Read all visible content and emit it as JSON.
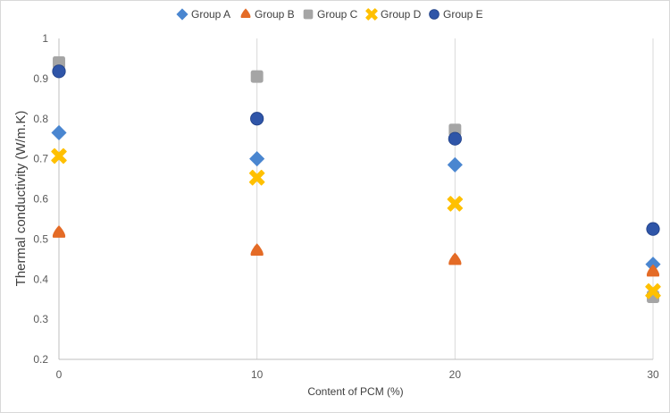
{
  "chart_data": {
    "type": "scatter",
    "title": "",
    "xlabel": "Content of PCM (%)",
    "ylabel": "Thermal conductivity (W/m.K)",
    "xlim": [
      0,
      30
    ],
    "ylim": [
      0.2,
      1
    ],
    "x_ticks": [
      "0",
      "10",
      "20",
      "30"
    ],
    "y_ticks": [
      "0.2",
      "0.3",
      "0.4",
      "0.5",
      "0.6",
      "0.7",
      "0.8",
      "0.9",
      "1"
    ],
    "x_tick_values": [
      0,
      10,
      20,
      30
    ],
    "y_tick_values": [
      0.2,
      0.3,
      0.4,
      0.5,
      0.6,
      0.7,
      0.8,
      0.9,
      1.0
    ],
    "grid": "vertical",
    "legend_position": "top",
    "series": [
      {
        "name": "Group A",
        "marker": "diamond",
        "color": "#4a86d0",
        "x": [
          0,
          10,
          20,
          30
        ],
        "y": [
          0.765,
          0.7,
          0.685,
          0.437
        ]
      },
      {
        "name": "Group B",
        "marker": "triangle",
        "color": "#e46b26",
        "x": [
          0,
          10,
          20,
          30
        ],
        "y": [
          0.515,
          0.47,
          0.447,
          0.418
        ]
      },
      {
        "name": "Group C",
        "marker": "square",
        "color": "#a5a5a5",
        "x": [
          0,
          10,
          20,
          30
        ],
        "y": [
          0.94,
          0.905,
          0.772,
          0.356
        ]
      },
      {
        "name": "Group D",
        "marker": "cross",
        "color": "#ffc000",
        "x": [
          0,
          10,
          20,
          30
        ],
        "y": [
          0.707,
          0.653,
          0.588,
          0.37
        ]
      },
      {
        "name": "Group E",
        "marker": "circle",
        "color": "#2f55a8",
        "x": [
          0,
          10,
          20,
          30
        ],
        "y": [
          0.918,
          0.8,
          0.75,
          0.525
        ]
      }
    ]
  }
}
